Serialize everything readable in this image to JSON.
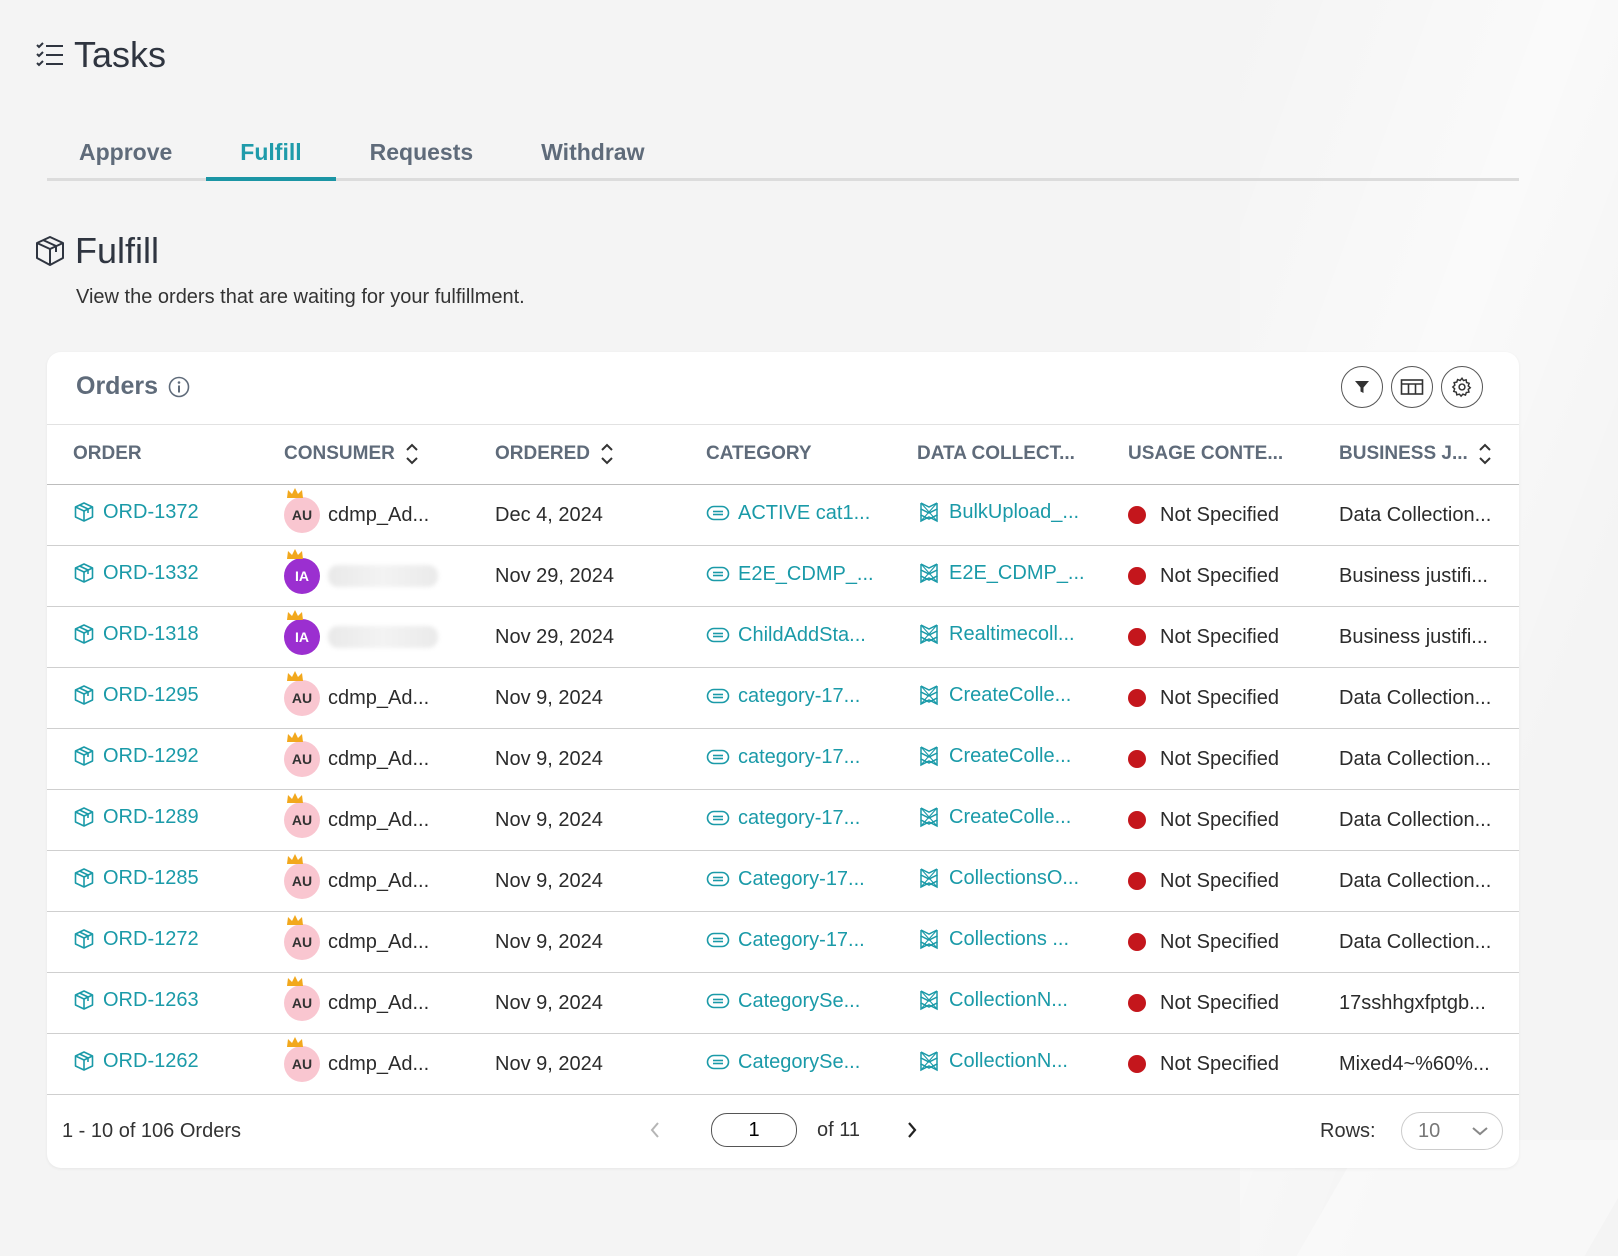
{
  "page": {
    "title": "Tasks"
  },
  "tabs": [
    {
      "label": "Approve",
      "active": false
    },
    {
      "label": "Fulfill",
      "active": true
    },
    {
      "label": "Requests",
      "active": false
    },
    {
      "label": "Withdraw",
      "active": false
    }
  ],
  "section": {
    "title": "Fulfill",
    "description": "View the orders that are waiting for your fulfillment."
  },
  "orders": {
    "title": "Orders",
    "toolbar": {
      "icons": [
        "filter-icon",
        "columns-icon",
        "settings-icon"
      ]
    },
    "columns": [
      "ORDER",
      "CONSUMER",
      "ORDERED",
      "CATEGORY",
      "DATA COLLECT...",
      "USAGE CONTE...",
      "BUSINESS J..."
    ],
    "rows": [
      {
        "order": "ORD-1372",
        "avatar": "AU",
        "consumer": "cdmp_Ad...",
        "ordered": "Dec 4, 2024",
        "category": "ACTIVE cat1...",
        "collection": "BulkUpload_...",
        "usage": "Not Specified",
        "business": "Data Collection..."
      },
      {
        "order": "ORD-1332",
        "avatar": "IA",
        "consumer": "",
        "ordered": "Nov 29, 2024",
        "category": "E2E_CDMP_...",
        "collection": "E2E_CDMP_...",
        "usage": "Not Specified",
        "business": "Business justifi..."
      },
      {
        "order": "ORD-1318",
        "avatar": "IA",
        "consumer": "",
        "ordered": "Nov 29, 2024",
        "category": "ChildAddSta...",
        "collection": "Realtimecoll...",
        "usage": "Not Specified",
        "business": "Business justifi..."
      },
      {
        "order": "ORD-1295",
        "avatar": "AU",
        "consumer": "cdmp_Ad...",
        "ordered": "Nov 9, 2024",
        "category": "category-17...",
        "collection": "CreateColle...",
        "usage": "Not Specified",
        "business": "Data Collection..."
      },
      {
        "order": "ORD-1292",
        "avatar": "AU",
        "consumer": "cdmp_Ad...",
        "ordered": "Nov 9, 2024",
        "category": "category-17...",
        "collection": "CreateColle...",
        "usage": "Not Specified",
        "business": "Data Collection..."
      },
      {
        "order": "ORD-1289",
        "avatar": "AU",
        "consumer": "cdmp_Ad...",
        "ordered": "Nov 9, 2024",
        "category": "category-17...",
        "collection": "CreateColle...",
        "usage": "Not Specified",
        "business": "Data Collection..."
      },
      {
        "order": "ORD-1285",
        "avatar": "AU",
        "consumer": "cdmp_Ad...",
        "ordered": "Nov 9, 2024",
        "category": "Category-17...",
        "collection": "CollectionsO...",
        "usage": "Not Specified",
        "business": "Data Collection..."
      },
      {
        "order": "ORD-1272",
        "avatar": "AU",
        "consumer": "cdmp_Ad...",
        "ordered": "Nov 9, 2024",
        "category": "Category-17...",
        "collection": "Collections ...",
        "usage": "Not Specified",
        "business": "Data Collection..."
      },
      {
        "order": "ORD-1263",
        "avatar": "AU",
        "consumer": "cdmp_Ad...",
        "ordered": "Nov 9, 2024",
        "category": "CategorySe...",
        "collection": "CollectionN...",
        "usage": "Not Specified",
        "business": "17sshhgxfptgb..."
      },
      {
        "order": "ORD-1262",
        "avatar": "AU",
        "consumer": "cdmp_Ad...",
        "ordered": "Nov 9, 2024",
        "category": "CategorySe...",
        "collection": "CollectionN...",
        "usage": "Not Specified",
        "business": "Mixed4~%60%..."
      }
    ],
    "footer": {
      "range": "1 - 10 of 106 Orders",
      "page": "1",
      "of": "of 11",
      "rows_label": "Rows:",
      "rows_value": "10"
    }
  },
  "colors": {
    "accent": "#1b95a4",
    "link": "#1a9aa8",
    "status_red": "#c4161c",
    "avatar_au": "#f9c6d0",
    "avatar_ia": "#9b2fd0",
    "crown": "#f2a81d"
  }
}
